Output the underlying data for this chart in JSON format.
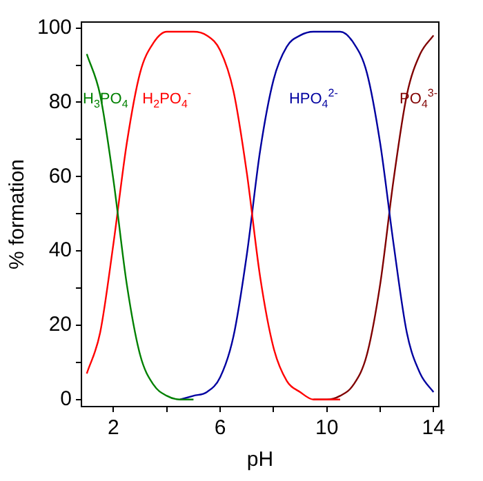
{
  "chart_data": {
    "type": "line",
    "xlabel": "pH",
    "ylabel": "% formation",
    "x": [
      1,
      1.5,
      2,
      2.5,
      3,
      3.5,
      4,
      4.5,
      5,
      5.5,
      6,
      6.5,
      7,
      7.5,
      8,
      8.5,
      9,
      9.5,
      10,
      10.5,
      11,
      11.5,
      12,
      12.5,
      13,
      13.5,
      14
    ],
    "series": [
      {
        "name": "H$_{3}$PO$_{4}$",
        "color": "#008000",
        "values": [
          93,
          82,
          59,
          31,
          12,
          4,
          1,
          0,
          0,
          null,
          null,
          null,
          null,
          null,
          null,
          null,
          null,
          null,
          null,
          null,
          null,
          null,
          null,
          null,
          null,
          null,
          null
        ]
      },
      {
        "name": "H$_{2}$PO$_{4}$$^{-}$",
        "color": "#ff0000",
        "values": [
          7,
          18,
          42,
          69,
          88,
          96,
          99,
          99,
          99,
          98,
          94,
          83,
          61,
          33,
          14,
          5,
          2,
          0,
          0,
          0,
          null,
          null,
          null,
          null,
          null,
          null,
          null
        ]
      },
      {
        "name": "HPO$_{4}$$^{2-}$",
        "color": "#0000a0",
        "values": [
          null,
          null,
          null,
          null,
          null,
          null,
          null,
          0,
          1,
          2,
          6,
          17,
          39,
          67,
          86,
          95,
          98,
          99,
          99,
          99,
          96,
          88,
          69,
          42,
          18,
          7,
          2
        ]
      },
      {
        "name": "PO$_{4}$$^{3-}$",
        "color": "#800000",
        "values": [
          null,
          null,
          null,
          null,
          null,
          null,
          null,
          null,
          null,
          null,
          null,
          null,
          null,
          null,
          null,
          null,
          null,
          0,
          0,
          1,
          4,
          12,
          31,
          59,
          82,
          93,
          98
        ]
      }
    ],
    "xlim": [
      0.8,
      14.2
    ],
    "ylim": [
      -1.9,
      101.6
    ],
    "xticks": [
      2,
      {
        "value": 4,
        "label": null
      },
      6,
      {
        "value": 8,
        "label": null
      },
      10,
      {
        "value": 12,
        "label": null
      },
      14
    ],
    "yticks": [
      0,
      {
        "value": 10,
        "label": null
      },
      20,
      {
        "value": 30,
        "label": null
      },
      40,
      {
        "value": 50,
        "label": null
      },
      60,
      {
        "value": 70,
        "label": null
      },
      80,
      {
        "value": 90,
        "label": null
      },
      100
    ],
    "grid": false,
    "legend": false,
    "marker": "none",
    "line_style": "solid"
  }
}
